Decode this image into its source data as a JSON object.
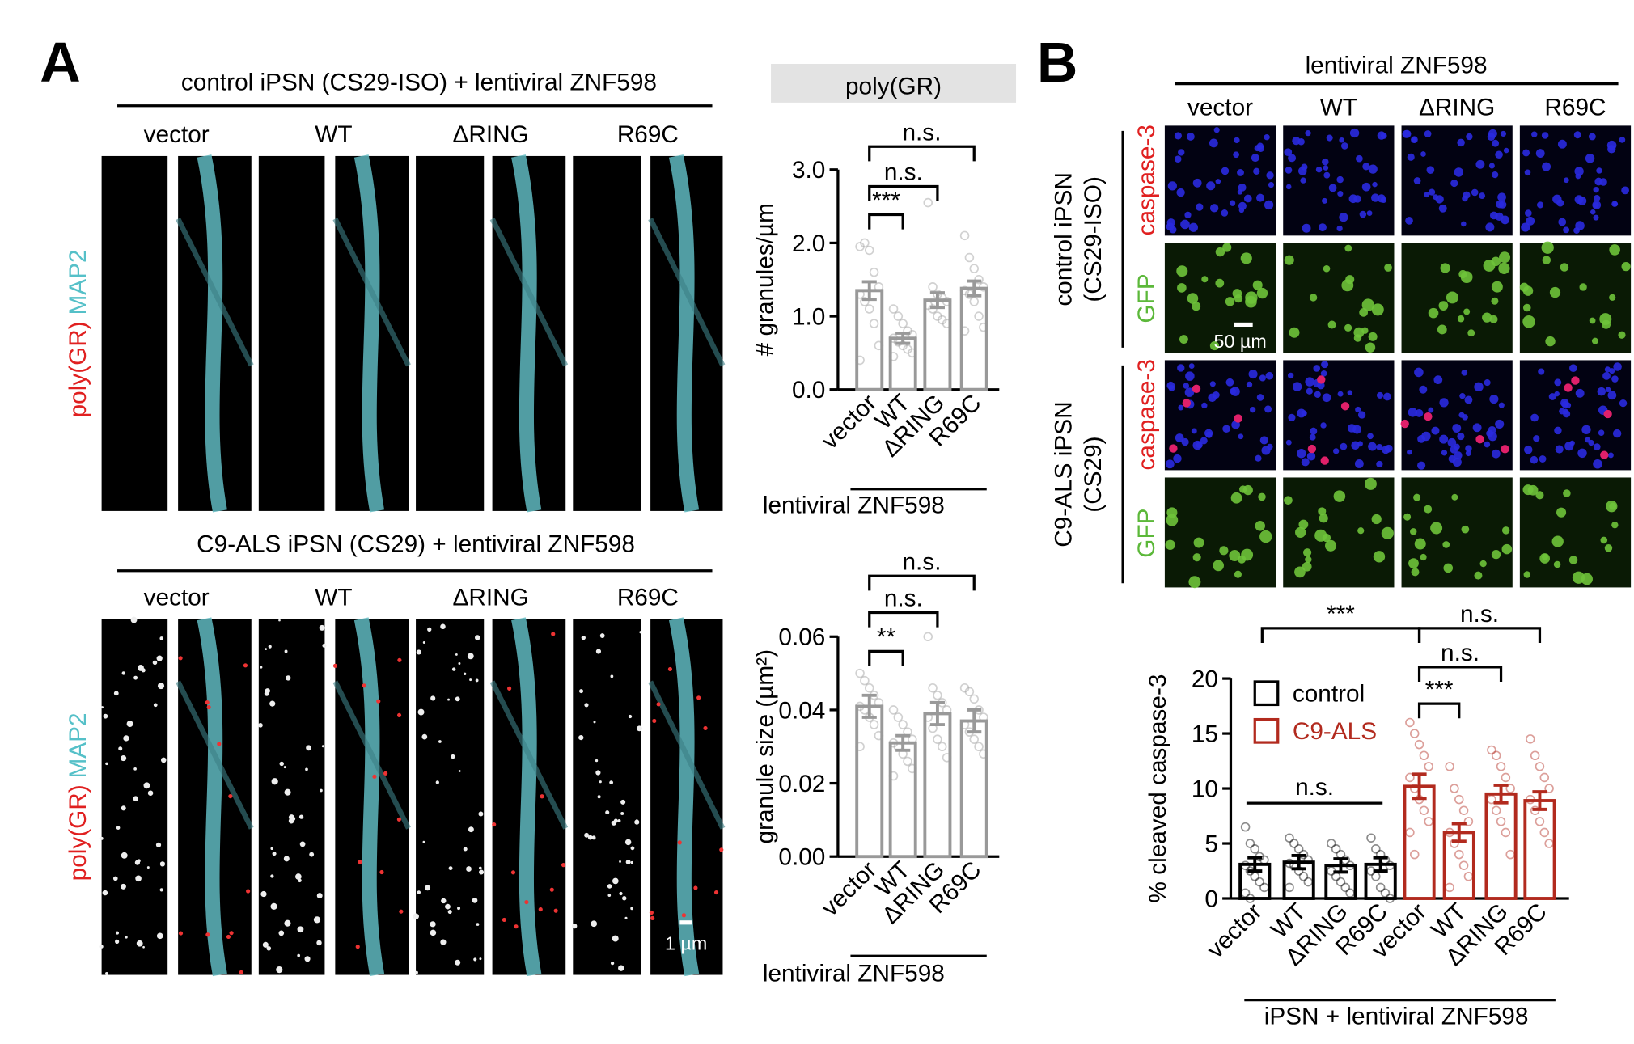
{
  "figure": {
    "panel_a": "A",
    "panel_b": "B",
    "a_top_title": "control iPSN (CS29-ISO) + lentiviral ZNF598",
    "a_bottom_title": "C9-ALS iPSN (CS29) + lentiviral ZNF598",
    "a_columns": [
      "vector",
      "WT",
      "ΔRING",
      "R69C"
    ],
    "a_row_label_red": "poly(GR)",
    "a_row_label_cyan": "MAP2",
    "a_scale": "1 µm",
    "b_header": "lentiviral ZNF598",
    "b_columns": [
      "vector",
      "WT",
      "ΔRING",
      "R69C"
    ],
    "b_group1": [
      "control iPSN",
      "(CS29-ISO)"
    ],
    "b_group2": [
      "C9-ALS iPSN",
      "(CS29)"
    ],
    "b_stain_red": "caspase-3",
    "b_stain_green": "GFP",
    "b_scale": "50 µm"
  },
  "chart_data": [
    {
      "type": "bar",
      "title": "poly(GR)",
      "ylabel": "# granules/µm",
      "categories": [
        "vector",
        "WT",
        "ΔRING",
        "R69C"
      ],
      "values": [
        1.35,
        0.7,
        1.22,
        1.38
      ],
      "errors": [
        0.12,
        0.07,
        0.1,
        0.1
      ],
      "color": "#999999",
      "points": [
        [
          1.95,
          2.0,
          1.9,
          1.6,
          1.4,
          1.3,
          1.2,
          1.1,
          0.9,
          0.6,
          0.4
        ],
        [
          1.1,
          1.0,
          0.9,
          0.8,
          0.75,
          0.7,
          0.65,
          0.6,
          0.55,
          0.5,
          0.45
        ],
        [
          2.55,
          1.4,
          1.3,
          1.25,
          1.2,
          1.15,
          1.1,
          1.0,
          0.95,
          0.9
        ],
        [
          2.1,
          1.8,
          1.65,
          1.5,
          1.4,
          1.35,
          1.3,
          1.2,
          1.0,
          0.85,
          0.8
        ]
      ],
      "ylim": [
        0,
        3
      ],
      "yticks": [
        {
          "value": 0,
          "label": "0.0"
        },
        {
          "value": 1,
          "label": "1.0"
        },
        {
          "value": 2,
          "label": "2.0"
        },
        {
          "value": 3,
          "label": "3.0"
        }
      ],
      "xgroup_label": "lentiviral ZNF598",
      "annotations": [
        "n.s.",
        "n.s.",
        "***"
      ]
    },
    {
      "type": "bar",
      "ylabel": "granule size (µm²)",
      "categories": [
        "vector",
        "WT",
        "ΔRING",
        "R69C"
      ],
      "values": [
        0.041,
        0.031,
        0.039,
        0.037
      ],
      "errors": [
        0.003,
        0.002,
        0.003,
        0.003
      ],
      "color": "#999999",
      "points": [
        [
          0.05,
          0.048,
          0.046,
          0.044,
          0.042,
          0.041,
          0.04,
          0.038,
          0.036,
          0.033,
          0.03
        ],
        [
          0.04,
          0.038,
          0.036,
          0.034,
          0.032,
          0.031,
          0.03,
          0.028,
          0.026,
          0.024,
          0.022
        ],
        [
          0.06,
          0.046,
          0.044,
          0.042,
          0.04,
          0.038,
          0.035,
          0.032,
          0.03,
          0.027
        ],
        [
          0.046,
          0.045,
          0.043,
          0.04,
          0.038,
          0.036,
          0.034,
          0.032,
          0.03,
          0.028
        ]
      ],
      "ylim": [
        0,
        0.06
      ],
      "yticks": [
        {
          "value": 0,
          "label": "0.00"
        },
        {
          "value": 0.02,
          "label": "0.02"
        },
        {
          "value": 0.04,
          "label": "0.04"
        },
        {
          "value": 0.06,
          "label": "0.06"
        }
      ],
      "xgroup_label": "lentiviral ZNF598",
      "annotations": [
        "n.s.",
        "n.s.",
        "**"
      ]
    },
    {
      "type": "grouped_bar",
      "ylabel": "% cleaved caspase-3",
      "categories": [
        "vector",
        "WT",
        "ΔRING",
        "R69C"
      ],
      "series": [
        {
          "name": "control",
          "color": "#000000",
          "values": [
            3.1,
            3.3,
            3.0,
            3.1
          ],
          "errors": [
            0.6,
            0.6,
            0.6,
            0.6
          ],
          "points": [
            [
              6.5,
              5,
              4.5,
              3.8,
              3.5,
              3,
              2.5,
              2,
              1.5,
              1,
              0.5,
              0
            ],
            [
              5.5,
              5,
              4.5,
              4,
              3.5,
              3.2,
              3,
              2.5,
              2,
              1.5,
              1
            ],
            [
              5,
              4.5,
              4,
              3.5,
              3,
              2.5,
              2,
              1.5,
              1,
              0.5
            ],
            [
              5.5,
              4.5,
              4,
              3.5,
              3,
              2.5,
              2,
              1,
              0.5,
              0
            ]
          ]
        },
        {
          "name": "C9-ALS",
          "color": "#b22a1e",
          "values": [
            10.2,
            6.0,
            9.5,
            8.9
          ],
          "errors": [
            1.1,
            0.8,
            0.8,
            0.8
          ],
          "points": [
            [
              16,
              15,
              14,
              13,
              12,
              11,
              10,
              9,
              8,
              7,
              6,
              4
            ],
            [
              12,
              10,
              9,
              8,
              7,
              6,
              5,
              4,
              3,
              2,
              1
            ],
            [
              13.5,
              13,
              12,
              11,
              10,
              9,
              8,
              7,
              6,
              4
            ],
            [
              14.5,
              13,
              12,
              11,
              10,
              9,
              8,
              7,
              6,
              5
            ]
          ]
        }
      ],
      "ylim": [
        0,
        20
      ],
      "yticks": [
        0,
        5,
        10,
        15,
        20
      ],
      "xgroup_label": "iPSN + lentiviral ZNF598",
      "annotations": [
        "***",
        "n.s.",
        "n.s.",
        "***",
        "n.s."
      ]
    }
  ]
}
